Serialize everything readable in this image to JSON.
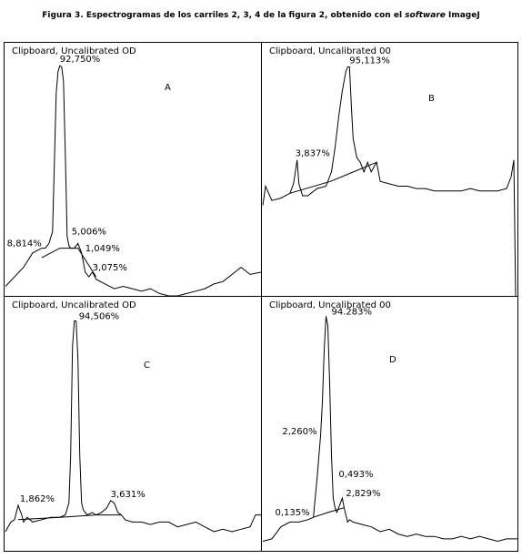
{
  "figure": {
    "label": "Figura 3.",
    "caption_main": " Espectrogramas de los carriles 2, 3, 4 de la figura 2, obtenido con el ",
    "caption_italic": "software",
    "caption_end": " ImageJ"
  },
  "chart_data": [
    {
      "type": "line",
      "panel_title": "Clipboard, Uncalibrated OD",
      "letter": "A",
      "x": [
        0,
        20,
        30,
        40,
        44,
        48,
        52,
        56,
        58,
        60,
        62,
        64,
        66,
        68,
        70,
        72,
        76,
        80,
        84,
        88,
        92,
        96,
        100,
        110,
        120,
        130,
        140,
        150,
        160,
        170,
        180,
        190,
        200,
        210,
        220,
        230,
        240,
        250,
        260,
        270,
        283
      ],
      "y": [
        0.04,
        0.12,
        0.18,
        0.2,
        0.2,
        0.22,
        0.27,
        0.85,
        0.94,
        0.965,
        0.96,
        0.9,
        0.6,
        0.25,
        0.21,
        0.2,
        0.2,
        0.22,
        0.18,
        0.1,
        0.08,
        0.1,
        0.07,
        0.05,
        0.03,
        0.04,
        0.03,
        0.02,
        0.03,
        0.01,
        0.0,
        0.0,
        0.01,
        0.02,
        0.03,
        0.05,
        0.06,
        0.09,
        0.12,
        0.09,
        0.1
      ],
      "peak_labels": [
        "92,750%",
        "8,814%",
        "5,006%",
        "1,049%",
        "3,075%"
      ],
      "peaks": [
        {
          "label": "92,750%",
          "x": 60,
          "y": 0.965,
          "dir": "above"
        },
        {
          "label": "8,814%",
          "x": 44,
          "y": 0.2,
          "dir": "left"
        },
        {
          "label": "5,006%",
          "x": 69,
          "y": 0.25,
          "dir": "right"
        },
        {
          "label": "1,049%",
          "x": 84,
          "y": 0.18,
          "dir": "right"
        },
        {
          "label": "3,075%",
          "x": 92,
          "y": 0.1,
          "dir": "right"
        }
      ],
      "baseline": [
        [
          40,
          0.16
        ],
        [
          60,
          0.2
        ],
        [
          80,
          0.2
        ],
        [
          100,
          0.08
        ]
      ],
      "xlim": [
        0,
        283
      ],
      "ylim": [
        0,
        1
      ]
    },
    {
      "type": "line",
      "panel_title": "Clipboard, Uncalibrated 00",
      "letter": "B",
      "x": [
        0,
        3,
        10,
        20,
        30,
        34,
        38,
        40,
        44,
        50,
        60,
        70,
        76,
        80,
        84,
        88,
        92,
        94,
        96,
        98,
        100,
        104,
        108,
        112,
        116,
        120,
        126,
        130,
        140,
        150,
        160,
        170,
        180,
        190,
        200,
        210,
        220,
        230,
        240,
        250,
        260,
        270,
        275,
        278,
        280
      ],
      "y": [
        0.38,
        0.46,
        0.4,
        0.41,
        0.43,
        0.47,
        0.57,
        0.47,
        0.42,
        0.42,
        0.45,
        0.46,
        0.52,
        0.62,
        0.75,
        0.86,
        0.94,
        0.96,
        0.96,
        0.8,
        0.66,
        0.58,
        0.56,
        0.52,
        0.56,
        0.52,
        0.56,
        0.48,
        0.47,
        0.46,
        0.46,
        0.45,
        0.45,
        0.44,
        0.44,
        0.44,
        0.44,
        0.45,
        0.44,
        0.44,
        0.44,
        0.45,
        0.5,
        0.57,
        0.0
      ],
      "peak_labels": [
        "95,113%",
        "3,837%"
      ],
      "peaks": [
        {
          "label": "95,113%",
          "x": 96,
          "y": 0.96,
          "dir": "above"
        },
        {
          "label": "3,837%",
          "x": 36,
          "y": 0.57,
          "dir": "above"
        }
      ],
      "baseline": [
        [
          30,
          0.43
        ],
        [
          75,
          0.48
        ],
        [
          126,
          0.56
        ]
      ],
      "xlim": [
        0,
        283
      ],
      "ylim": [
        0,
        1
      ]
    },
    {
      "type": "line",
      "panel_title": "Clipboard, Uncalibrated OD",
      "letter": "C",
      "x": [
        0,
        6,
        10,
        14,
        18,
        20,
        24,
        30,
        40,
        50,
        60,
        66,
        70,
        72,
        74,
        76,
        78,
        80,
        82,
        84,
        86,
        90,
        96,
        100,
        106,
        112,
        116,
        120,
        124,
        128,
        132,
        140,
        150,
        160,
        170,
        180,
        190,
        200,
        210,
        220,
        230,
        240,
        250,
        260,
        270,
        276,
        283
      ],
      "y": [
        0.08,
        0.12,
        0.13,
        0.19,
        0.15,
        0.12,
        0.14,
        0.12,
        0.13,
        0.14,
        0.14,
        0.15,
        0.2,
        0.4,
        0.85,
        0.96,
        0.96,
        0.8,
        0.4,
        0.2,
        0.17,
        0.15,
        0.16,
        0.15,
        0.16,
        0.18,
        0.21,
        0.2,
        0.16,
        0.15,
        0.13,
        0.12,
        0.12,
        0.11,
        0.12,
        0.12,
        0.1,
        0.11,
        0.12,
        0.1,
        0.08,
        0.09,
        0.08,
        0.09,
        0.1,
        0.15,
        0.15
      ],
      "peak_labels": [
        "94,506%",
        "1,862%",
        "3,631%"
      ],
      "peaks": [
        {
          "label": "94,506%",
          "x": 77,
          "y": 0.96,
          "dir": "right"
        },
        {
          "label": "1,862%",
          "x": 16,
          "y": 0.19,
          "dir": "above"
        },
        {
          "label": "3,631%",
          "x": 116,
          "y": 0.21,
          "dir": "above"
        }
      ],
      "baseline": [
        [
          14,
          0.13
        ],
        [
          60,
          0.14
        ],
        [
          100,
          0.15
        ],
        [
          128,
          0.15
        ]
      ],
      "xlim": [
        0,
        283
      ],
      "ylim": [
        0,
        1
      ]
    },
    {
      "type": "line",
      "panel_title": "Clipboard, Uncalibrated 00",
      "letter": "D",
      "x": [
        0,
        10,
        20,
        30,
        40,
        50,
        56,
        60,
        64,
        66,
        68,
        70,
        72,
        74,
        76,
        78,
        80,
        82,
        84,
        86,
        88,
        90,
        92,
        94,
        96,
        100,
        110,
        120,
        130,
        140,
        150,
        160,
        170,
        180,
        190,
        200,
        210,
        220,
        230,
        240,
        250,
        260,
        270,
        283
      ],
      "y": [
        0.04,
        0.05,
        0.1,
        0.12,
        0.12,
        0.13,
        0.14,
        0.3,
        0.48,
        0.62,
        0.84,
        0.98,
        0.94,
        0.7,
        0.4,
        0.22,
        0.18,
        0.16,
        0.18,
        0.2,
        0.22,
        0.18,
        0.15,
        0.12,
        0.13,
        0.12,
        0.11,
        0.1,
        0.08,
        0.09,
        0.07,
        0.06,
        0.07,
        0.06,
        0.06,
        0.05,
        0.05,
        0.06,
        0.05,
        0.06,
        0.05,
        0.04,
        0.05,
        0.05
      ],
      "peak_labels": [
        "94.283%",
        "2,260%",
        "0,493%",
        "2,829%",
        "0,135%"
      ],
      "peaks": [
        {
          "label": "94.283%",
          "x": 72,
          "y": 0.98,
          "dir": "right"
        },
        {
          "label": "2,260%",
          "x": 64,
          "y": 0.48,
          "dir": "left"
        },
        {
          "label": "0,493%",
          "x": 80,
          "y": 0.3,
          "dir": "right"
        },
        {
          "label": "2,829%",
          "x": 88,
          "y": 0.22,
          "dir": "right"
        },
        {
          "label": "0,135%",
          "x": 56,
          "y": 0.14,
          "dir": "left"
        }
      ],
      "baseline": [
        [
          56,
          0.14
        ],
        [
          72,
          0.16
        ],
        [
          90,
          0.18
        ]
      ],
      "xlim": [
        0,
        283
      ],
      "ylim": [
        0,
        1
      ]
    }
  ]
}
